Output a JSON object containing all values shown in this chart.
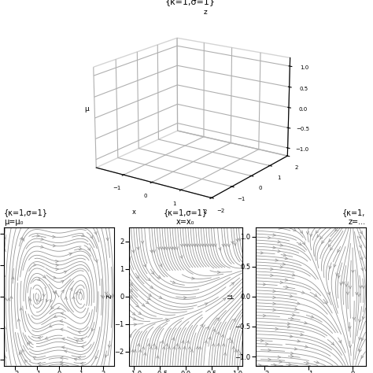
{
  "kappa": 1,
  "sigma": 1,
  "title_3d": "{κ=1,σ=1}",
  "title_bl_line1": "{κ=1,σ=1}",
  "title_bl_line2": "μ=μ₀",
  "title_bm_line1": "{κ=1,σ=1}",
  "title_bm_line2": "x=x₀",
  "title_br_line1": "{κ=1,",
  "title_br_line2": "z=...",
  "bg_color": "#ffffff",
  "stream_color": "#999999",
  "traj_color": "#111111",
  "x3d_lim": [
    -2,
    2
  ],
  "y3d_lim": [
    -2,
    2
  ],
  "z3d_lim": [
    -1.2,
    1.2
  ],
  "bl_xlim": [
    -2.5,
    2.5
  ],
  "bl_zlim": [
    -2.2,
    2.2
  ],
  "bm_mulim": [
    -1.1,
    1.1
  ],
  "bm_zlim": [
    -2.5,
    2.5
  ],
  "br_xlim": [
    -2.2,
    0.3
  ],
  "br_mulim": [
    -1.15,
    1.15
  ]
}
